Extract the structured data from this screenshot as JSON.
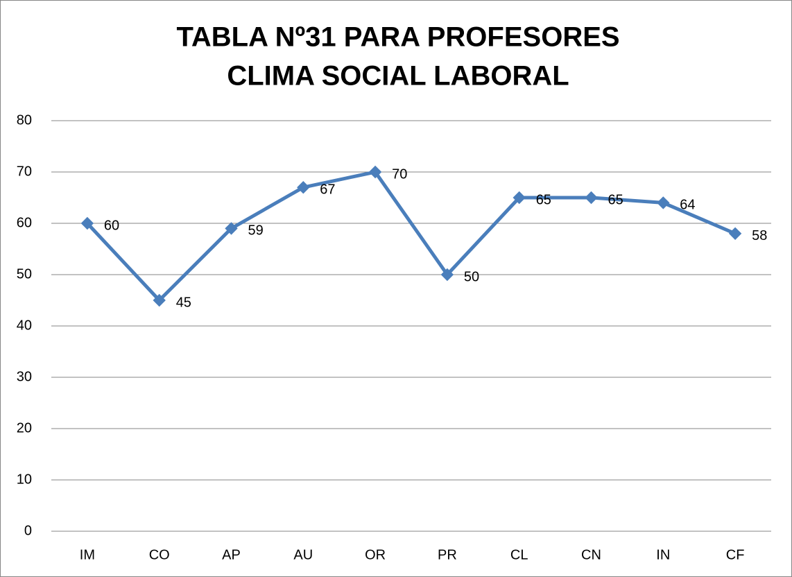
{
  "chart_data": {
    "type": "line",
    "title": [
      "TABLA  Nº31 PARA PROFESORES",
      "CLIMA SOCIAL LABORAL"
    ],
    "categories": [
      "IM",
      "CO",
      "AP",
      "AU",
      "OR",
      "PR",
      "CL",
      "CN",
      "IN",
      "CF"
    ],
    "values": [
      60,
      45,
      59,
      67,
      70,
      50,
      65,
      65,
      64,
      58
    ],
    "color": "#4a7ebb",
    "ylim": [
      0,
      80
    ],
    "yticks": [
      0,
      10,
      20,
      30,
      40,
      50,
      60,
      70,
      80
    ],
    "grid": true,
    "data_labels": true
  }
}
